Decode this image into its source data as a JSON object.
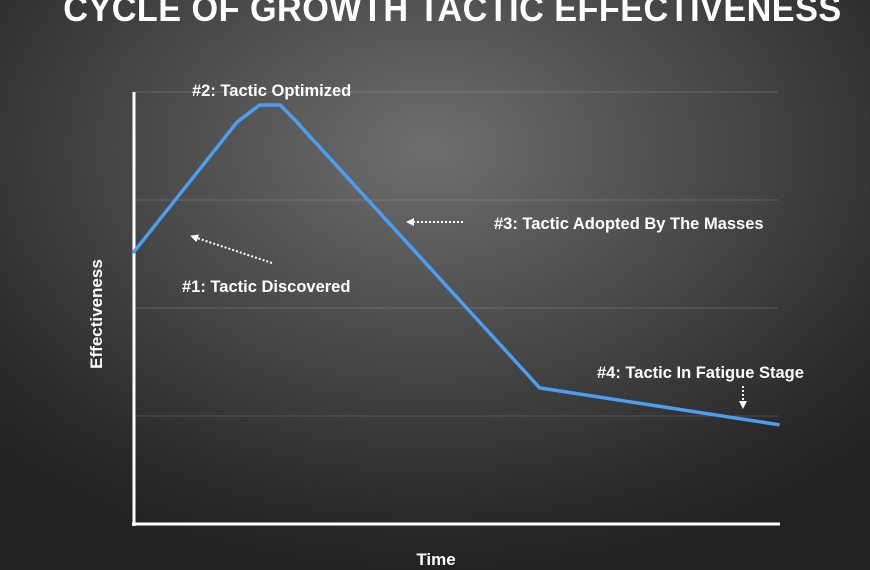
{
  "chart_data": {
    "type": "line",
    "title": "CYCLE OF GROWTH TACTIC EFFECTIVENESS",
    "xlabel": "Time",
    "ylabel": "Effectiveness",
    "xlim": [
      0,
      100
    ],
    "ylim": [
      0,
      100
    ],
    "grid": "horizontal",
    "series": [
      {
        "color": "#4a9ff0",
        "x": [
          0,
          16,
          19.5,
          22.7,
          25,
          63,
          100
        ],
        "y": [
          63,
          93,
          97,
          97,
          93.5,
          31.5,
          23
        ]
      }
    ],
    "annotations": [
      {
        "text": "#1:  Tactic Discovered"
      },
      {
        "text": "#2:  Tactic Optimized"
      },
      {
        "text": "#3:  Tactic Adopted By The Masses"
      },
      {
        "text": "#4:  Tactic In Fatigue Stage"
      }
    ]
  }
}
